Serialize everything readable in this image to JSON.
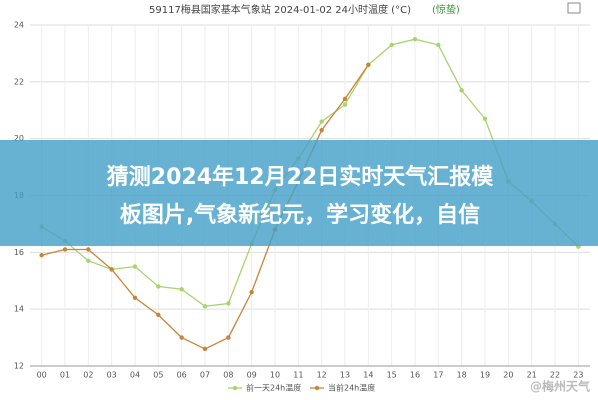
{
  "chart_data": {
    "type": "line",
    "title": "59117梅县国家基本气象站  2024-01-02  24小时温度 (°C)",
    "subtitle": "(惊蛰)",
    "categories": [
      "00",
      "01",
      "02",
      "03",
      "04",
      "05",
      "06",
      "07",
      "08",
      "09",
      "10",
      "11",
      "12",
      "13",
      "14",
      "15",
      "16",
      "17",
      "18",
      "19",
      "20",
      "21",
      "22",
      "23"
    ],
    "series": [
      {
        "name": "前一天24h温度",
        "color": "#a8d46f",
        "values": [
          16.9,
          16.4,
          15.7,
          15.4,
          15.5,
          14.8,
          14.7,
          14.1,
          14.2,
          16.3,
          18.2,
          19.3,
          20.6,
          21.2,
          22.6,
          23.3,
          23.5,
          23.3,
          21.7,
          20.7,
          18.5,
          17.8,
          17.0,
          16.2
        ]
      },
      {
        "name": "当前24h温度",
        "color": "#c8853a",
        "values": [
          15.9,
          16.1,
          16.1,
          15.4,
          14.4,
          13.8,
          13.0,
          12.6,
          13.0,
          14.6,
          16.8,
          18.5,
          20.3,
          21.4,
          22.6,
          null,
          null,
          null,
          null,
          null,
          null,
          null,
          null,
          null
        ]
      }
    ],
    "ylim": [
      12,
      24
    ],
    "yticks": [
      12,
      14,
      16,
      18,
      20,
      22,
      24
    ],
    "grid": true
  },
  "banner": {
    "lines": [
      "猜测2024年12月22日实时天气汇报模",
      "板图片,气象新纪元，学习变化，自信"
    ]
  },
  "watermark": "@梅州天气"
}
